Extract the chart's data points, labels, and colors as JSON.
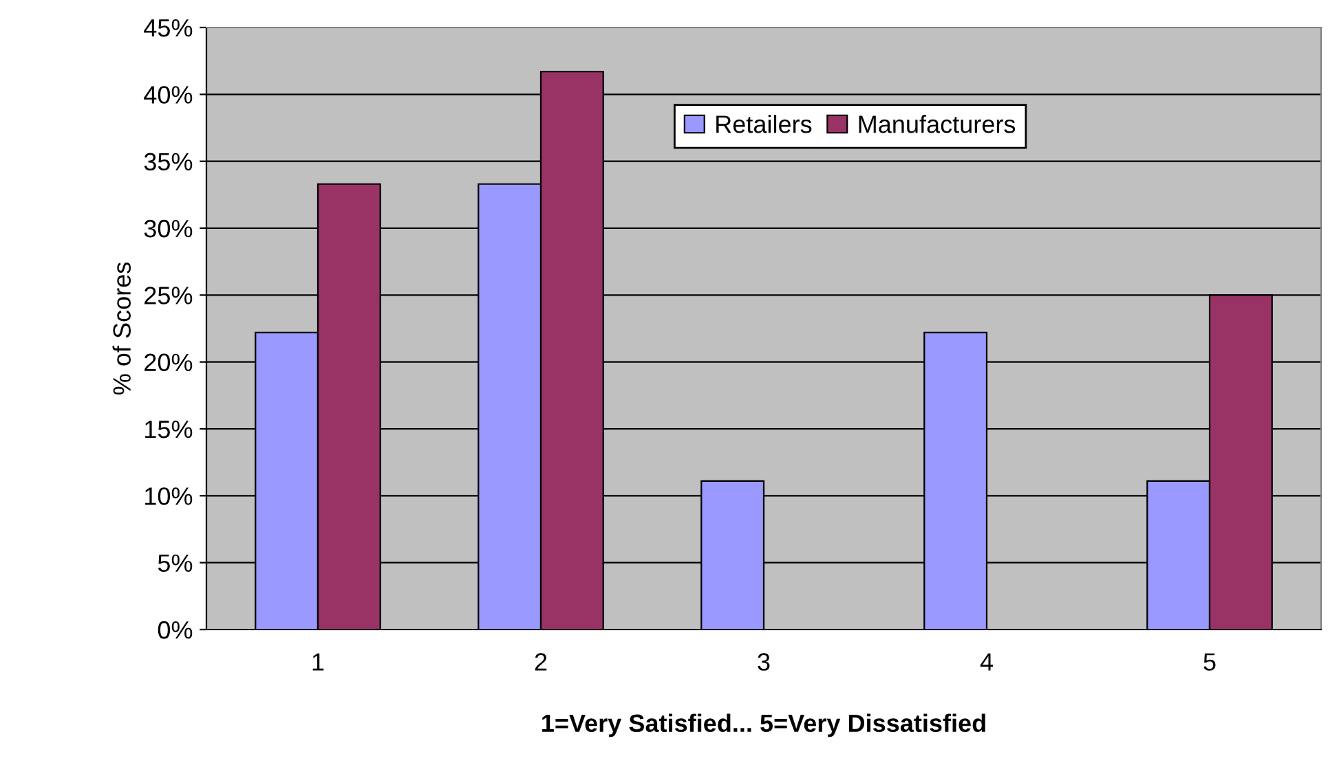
{
  "chart_data": {
    "type": "bar",
    "xlabel": "1=Very Satisfied... 5=Very Dissatisfied",
    "ylabel": "% of Scores",
    "categories": [
      "1",
      "2",
      "3",
      "4",
      "5"
    ],
    "series": [
      {
        "name": "Retailers",
        "color": "#9999ff",
        "values": [
          22.2,
          33.3,
          11.1,
          22.2,
          11.1
        ]
      },
      {
        "name": "Manufacturers",
        "color": "#993366",
        "values": [
          33.3,
          41.7,
          null,
          null,
          25
        ]
      }
    ],
    "ylim": [
      0,
      45
    ],
    "yticks": [
      {
        "value": 0,
        "label": "0%"
      },
      {
        "value": 5,
        "label": "5%"
      },
      {
        "value": 10,
        "label": "10%"
      },
      {
        "value": 15,
        "label": "15%"
      },
      {
        "value": 20,
        "label": "20%"
      },
      {
        "value": 25,
        "label": "25%"
      },
      {
        "value": 30,
        "label": "30%"
      },
      {
        "value": 35,
        "label": "35%"
      },
      {
        "value": 40,
        "label": "40%"
      },
      {
        "value": 45,
        "label": "45%"
      }
    ],
    "grid": "y",
    "legend": "top right"
  }
}
